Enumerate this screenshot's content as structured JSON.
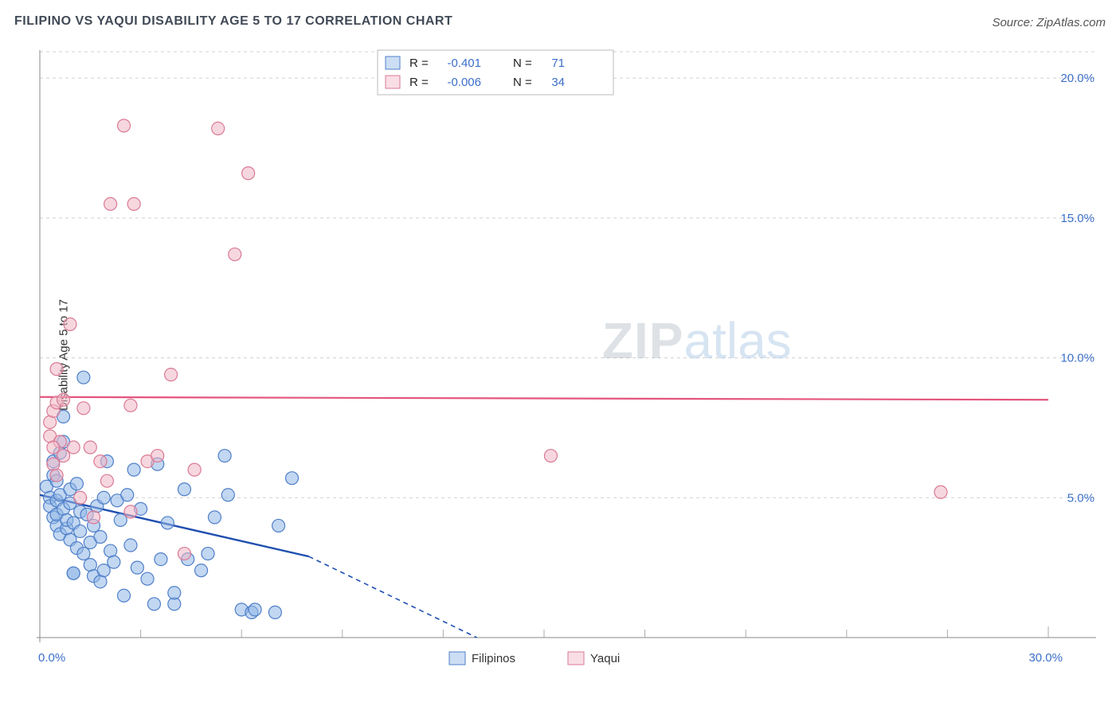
{
  "header": {
    "title": "FILIPINO VS YAQUI DISABILITY AGE 5 TO 17 CORRELATION CHART",
    "source": "Source: ZipAtlas.com"
  },
  "chart": {
    "type": "scatter",
    "ylabel": "Disability Age 5 to 17",
    "background_color": "#ffffff",
    "grid_color": "#d0d0d0",
    "axis_color": "#888888",
    "xlim": [
      0,
      30
    ],
    "ylim": [
      0,
      21
    ],
    "yticks": [
      {
        "v": 5,
        "label": "5.0%"
      },
      {
        "v": 10,
        "label": "10.0%"
      },
      {
        "v": 15,
        "label": "15.0%"
      },
      {
        "v": 20,
        "label": "20.0%"
      }
    ],
    "ytick_origin_label": "0.0%",
    "xtick_end_label": "30.0%",
    "xticks_minor": [
      3,
      6,
      9,
      12,
      15,
      18,
      21,
      24,
      27
    ],
    "marker_radius": 8,
    "marker_stroke_width": 1.2,
    "series": {
      "filipinos": {
        "label": "Filipinos",
        "fill": "#8fb6e6",
        "stroke": "#4f7fc9",
        "fill_opacity": 0.55,
        "R": "-0.401",
        "N": "71",
        "trend": {
          "x1": 0,
          "y1": 5.1,
          "x2_solid": 8,
          "y2_solid": 2.9,
          "x2_dash": 13,
          "y2_dash": 0.0,
          "color": "#1f4fb0",
          "width": 2.4
        },
        "points": [
          [
            0.2,
            5.4
          ],
          [
            0.3,
            5.0
          ],
          [
            0.3,
            4.7
          ],
          [
            0.4,
            5.8
          ],
          [
            0.4,
            4.3
          ],
          [
            0.4,
            6.3
          ],
          [
            0.5,
            4.9
          ],
          [
            0.5,
            5.6
          ],
          [
            0.5,
            4.0
          ],
          [
            0.5,
            4.4
          ],
          [
            0.6,
            5.1
          ],
          [
            0.6,
            3.7
          ],
          [
            0.6,
            6.6
          ],
          [
            0.7,
            7.0
          ],
          [
            0.7,
            7.9
          ],
          [
            0.7,
            4.6
          ],
          [
            0.8,
            3.9
          ],
          [
            0.8,
            4.2
          ],
          [
            0.9,
            5.3
          ],
          [
            0.9,
            3.5
          ],
          [
            0.9,
            4.8
          ],
          [
            1.0,
            4.1
          ],
          [
            1.0,
            2.3
          ],
          [
            1.0,
            2.3
          ],
          [
            1.1,
            5.5
          ],
          [
            1.1,
            3.2
          ],
          [
            1.2,
            4.5
          ],
          [
            1.2,
            3.8
          ],
          [
            1.3,
            3.0
          ],
          [
            1.3,
            9.3
          ],
          [
            1.4,
            4.4
          ],
          [
            1.5,
            2.6
          ],
          [
            1.5,
            3.4
          ],
          [
            1.6,
            2.2
          ],
          [
            1.6,
            4.0
          ],
          [
            1.7,
            4.7
          ],
          [
            1.8,
            2.0
          ],
          [
            1.8,
            3.6
          ],
          [
            1.9,
            5.0
          ],
          [
            1.9,
            2.4
          ],
          [
            2.0,
            6.3
          ],
          [
            2.1,
            3.1
          ],
          [
            2.2,
            2.7
          ],
          [
            2.3,
            4.9
          ],
          [
            2.4,
            4.2
          ],
          [
            2.5,
            1.5
          ],
          [
            2.6,
            5.1
          ],
          [
            2.7,
            3.3
          ],
          [
            2.8,
            6.0
          ],
          [
            2.9,
            2.5
          ],
          [
            3.0,
            4.6
          ],
          [
            3.2,
            2.1
          ],
          [
            3.4,
            1.2
          ],
          [
            3.5,
            6.2
          ],
          [
            3.6,
            2.8
          ],
          [
            3.8,
            4.1
          ],
          [
            4.0,
            1.2
          ],
          [
            4.0,
            1.6
          ],
          [
            4.3,
            5.3
          ],
          [
            4.4,
            2.8
          ],
          [
            4.8,
            2.4
          ],
          [
            5.0,
            3.0
          ],
          [
            5.2,
            4.3
          ],
          [
            5.5,
            6.5
          ],
          [
            5.6,
            5.1
          ],
          [
            6.0,
            1.0
          ],
          [
            6.3,
            0.9
          ],
          [
            6.4,
            1.0
          ],
          [
            7.0,
            0.9
          ],
          [
            7.1,
            4.0
          ],
          [
            7.5,
            5.7
          ]
        ]
      },
      "yaqui": {
        "label": "Yaqui",
        "fill": "#f1b6c5",
        "stroke": "#d97a95",
        "fill_opacity": 0.55,
        "R": "-0.006",
        "N": "34",
        "trend": {
          "x1": 0,
          "y1": 8.6,
          "x2": 30,
          "y2": 8.5,
          "color": "#e4557e",
          "width": 2.2
        },
        "points": [
          [
            0.3,
            7.2
          ],
          [
            0.3,
            7.7
          ],
          [
            0.4,
            8.1
          ],
          [
            0.4,
            6.2
          ],
          [
            0.5,
            8.4
          ],
          [
            0.5,
            5.8
          ],
          [
            0.5,
            9.6
          ],
          [
            0.6,
            7.0
          ],
          [
            0.7,
            8.5
          ],
          [
            0.7,
            6.5
          ],
          [
            0.9,
            11.2
          ],
          [
            1.0,
            6.8
          ],
          [
            1.2,
            5.0
          ],
          [
            1.3,
            8.2
          ],
          [
            1.5,
            6.8
          ],
          [
            1.6,
            4.3
          ],
          [
            1.8,
            6.3
          ],
          [
            2.0,
            5.6
          ],
          [
            2.1,
            15.5
          ],
          [
            2.5,
            18.3
          ],
          [
            2.7,
            8.3
          ],
          [
            2.7,
            4.5
          ],
          [
            2.8,
            15.5
          ],
          [
            3.2,
            6.3
          ],
          [
            3.5,
            6.5
          ],
          [
            3.9,
            9.4
          ],
          [
            4.3,
            3.0
          ],
          [
            4.6,
            6.0
          ],
          [
            5.3,
            18.2
          ],
          [
            5.8,
            13.7
          ],
          [
            6.2,
            16.6
          ],
          [
            15.2,
            6.5
          ],
          [
            26.8,
            5.2
          ],
          [
            0.4,
            6.8
          ]
        ]
      }
    },
    "bottom_legend": {
      "items": [
        {
          "key": "filipinos",
          "label": "Filipinos"
        },
        {
          "key": "yaqui",
          "label": "Yaqui"
        }
      ]
    },
    "watermark": {
      "zip": "ZIP",
      "atlas": "atlas"
    }
  }
}
